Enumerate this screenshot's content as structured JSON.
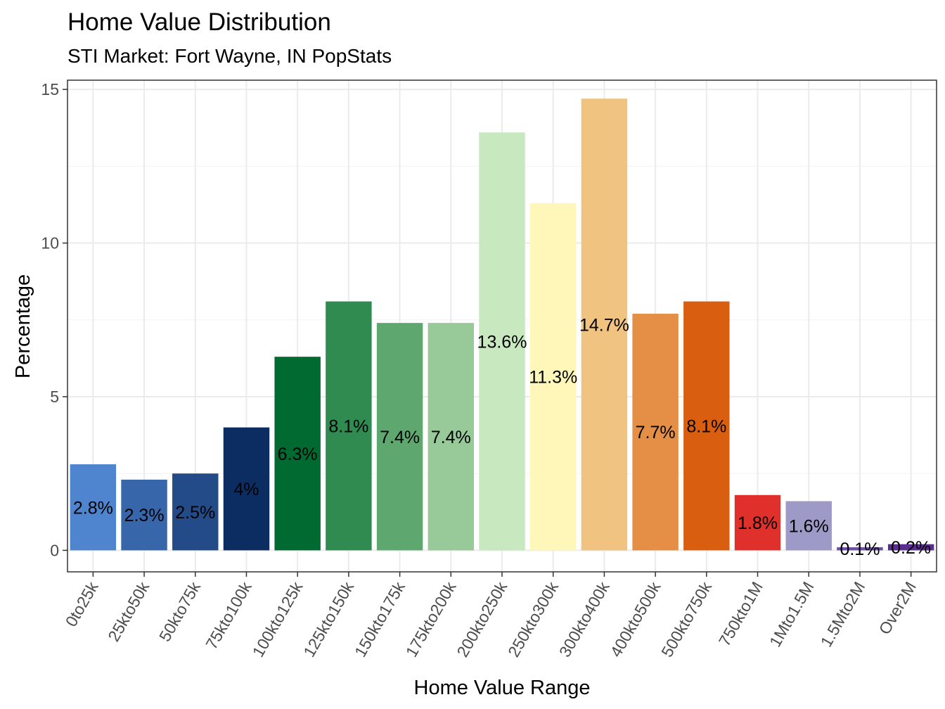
{
  "chart_data": {
    "type": "bar",
    "title": "Home Value Distribution",
    "subtitle": "STI Market: Fort Wayne, IN PopStats",
    "xlabel": "Home Value Range",
    "ylabel": "Percentage",
    "ylim": [
      -0.7,
      15.3
    ],
    "yticks": [
      0,
      5,
      10,
      15
    ],
    "grid": true,
    "legend": "none",
    "categories": [
      "0to25k",
      "25kto50k",
      "50kto75k",
      "75kto100k",
      "100kto125k",
      "125kto150k",
      "150kto175k",
      "175kto200k",
      "200kto250k",
      "250kto300k",
      "300kto400k",
      "400kto500k",
      "500kto750k",
      "750kto1M",
      "1Mto1.5M",
      "1.5Mto2M",
      "Over2M"
    ],
    "values": [
      2.8,
      2.3,
      2.5,
      4,
      6.3,
      8.1,
      7.4,
      7.4,
      13.6,
      11.3,
      14.7,
      7.7,
      8.1,
      1.8,
      1.6,
      0.1,
      0.2
    ],
    "labels": [
      "2.8%",
      "2.3%",
      "2.5%",
      "4%",
      "6.3%",
      "8.1%",
      "7.4%",
      "7.4%",
      "13.6%",
      "11.3%",
      "14.7%",
      "7.7%",
      "8.1%",
      "1.8%",
      "1.6%",
      "0.1%",
      "0.2%"
    ],
    "colors": [
      "#4f84cf",
      "#3766aa",
      "#234b88",
      "#0c2d61",
      "#006a30",
      "#2f8b50",
      "#5ea86f",
      "#97c999",
      "#c8e8c0",
      "#fff7ba",
      "#f0c380",
      "#e48f45",
      "#d95e10",
      "#e0302b",
      "#9e9ac8",
      "#6e4fa6",
      "#5a2d91"
    ]
  }
}
